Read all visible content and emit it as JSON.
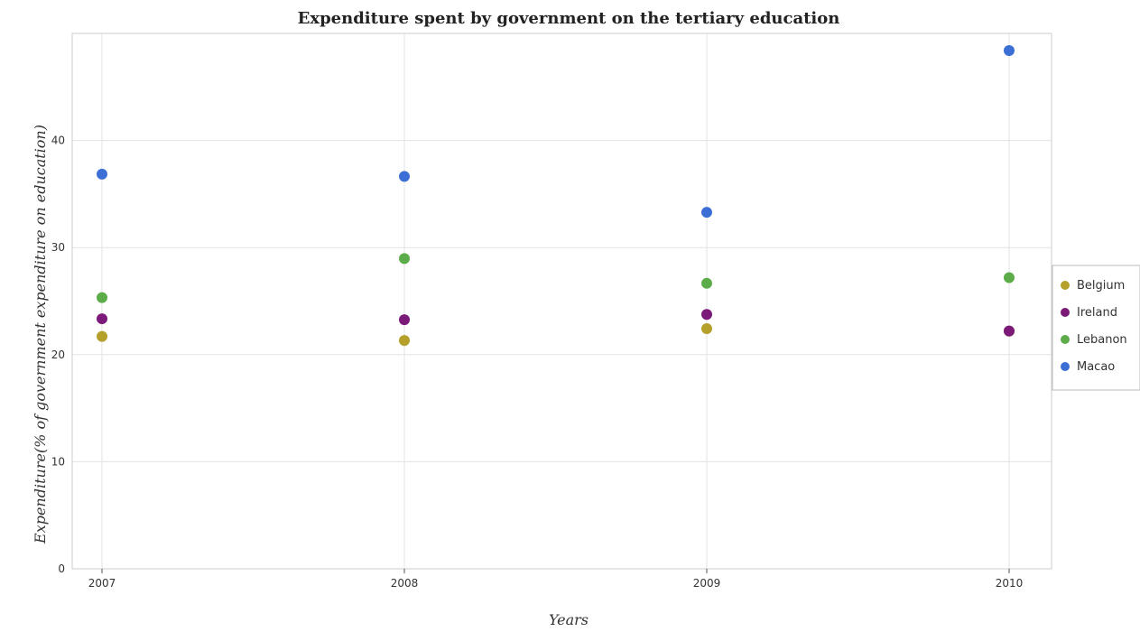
{
  "chart_data": {
    "type": "scatter",
    "title": "Expenditure spent by government on the tertiary education",
    "xlabel": "Years",
    "ylabel": "Expenditure(% of government expenditure on education)",
    "categories": [
      "2007",
      "2008",
      "2009",
      "2010"
    ],
    "ylim": [
      0,
      50
    ],
    "yticks": [
      "0",
      "10",
      "20",
      "30",
      "40"
    ],
    "grid": true,
    "legend_position": "right",
    "series": [
      {
        "name": "Belgium",
        "color": "#b5a02c",
        "values": [
          21.7,
          21.32,
          22.43,
          22.2
        ]
      },
      {
        "name": "Ireland",
        "color": "#7b1a78",
        "values": [
          23.35,
          23.26,
          23.76,
          22.21
        ]
      },
      {
        "name": "Lebanon",
        "color": "#5cad4a",
        "values": [
          25.33,
          28.97,
          26.66,
          27.19
        ]
      },
      {
        "name": "Macao",
        "color": "#3b6fd6",
        "values": [
          36.86,
          36.65,
          33.29,
          48.4
        ]
      }
    ]
  }
}
